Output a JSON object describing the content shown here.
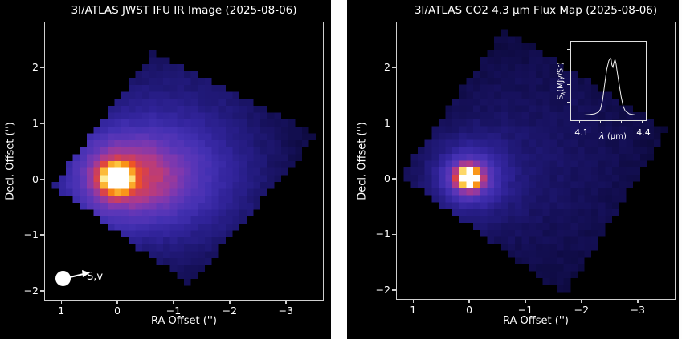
{
  "figure": {
    "background": "#000000",
    "text_color": "#ffffff",
    "spine_color": "#cfcfcf",
    "divider_color": "#fdfdfd",
    "colormap_stops": [
      [
        0.0,
        "#000000"
      ],
      [
        0.08,
        "#08062e"
      ],
      [
        0.16,
        "#140f55"
      ],
      [
        0.24,
        "#221a7c"
      ],
      [
        0.32,
        "#32249c"
      ],
      [
        0.4,
        "#4330b2"
      ],
      [
        0.48,
        "#5c36b8"
      ],
      [
        0.55,
        "#8138ae"
      ],
      [
        0.62,
        "#b13a88"
      ],
      [
        0.68,
        "#d6404e"
      ],
      [
        0.74,
        "#ee5226"
      ],
      [
        0.82,
        "#f98c12"
      ],
      [
        0.89,
        "#fdc843"
      ],
      [
        0.95,
        "#feef9e"
      ],
      [
        1.0,
        "#ffffff"
      ]
    ]
  },
  "chart_data": [
    {
      "type": "heatmap",
      "title": "3I/ATLAS JWST IFU IR Image (2025-08-06)",
      "xlabel": "RA Offset ('')",
      "ylabel": "Decl. Offset ('')",
      "xticks": [
        1,
        0,
        -1,
        -2,
        -3
      ],
      "xtick_labels": [
        "1",
        "0",
        "−1",
        "−2",
        "−3"
      ],
      "yticks": [
        2,
        1,
        0,
        -1,
        -2
      ],
      "ytick_labels": [
        "2",
        "1",
        "0",
        "−1",
        "−2"
      ],
      "xlim": [
        1.29,
        -3.69
      ],
      "ylim": [
        2.81,
        -2.19
      ],
      "annotation": "S,v",
      "peak_position_arcsec": {
        "ra": 0,
        "dec": 0
      },
      "footprint_corners_arcsec": [
        [
          -0.64,
          2.29
        ],
        [
          -3.61,
          0.79
        ],
        [
          -1.31,
          -1.93
        ],
        [
          1.16,
          -0.13
        ]
      ],
      "description": "Diffuse cometary coma: white/yellow core at origin, red-orange inner coma elongated toward negative RA, violet-indigo outer coma filling a rotated-square IFU footprint on black sky"
    },
    {
      "type": "heatmap",
      "title": "3I/ATLAS CO2 4.3 μm Flux Map (2025-08-06)",
      "xlabel": "RA Offset ('')",
      "ylabel": "Decl. Offset ('')",
      "xticks": [
        1,
        0,
        -1,
        -2,
        -3
      ],
      "xtick_labels": [
        "1",
        "0",
        "−1",
        "−2",
        "−3"
      ],
      "yticks": [
        2,
        1,
        0,
        -1,
        -2
      ],
      "ytick_labels": [
        "2",
        "1",
        "0",
        "−1",
        "−2"
      ],
      "xlim": [
        1.29,
        -3.69
      ],
      "ylim": [
        2.81,
        -2.19
      ],
      "peak_position_arcsec": {
        "ra": 0,
        "dec": 0
      },
      "footprint_corners_arcsec": [
        [
          -0.63,
          2.69
        ],
        [
          -3.57,
          0.86
        ],
        [
          -1.71,
          -2.14
        ],
        [
          1.21,
          0.04
        ]
      ],
      "description": "Compact CO2 emission core at origin over faint dark-indigo coma in same rotated IFU footprint",
      "inset": {
        "type": "line",
        "ylabel": "Sλ(MJy/Sr)",
        "ylabel_pre": "S",
        "ylabel_sub": "λ",
        "ylabel_unit": "(MJy/Sr)",
        "xlabel": "λ (μm)",
        "xlabel_lambda": "λ",
        "xlabel_unit": "(μm)",
        "xtick_labels": [
          "4.1",
          "4.4"
        ],
        "xticks_minor": [
          4.1,
          4.2,
          4.3,
          4.4
        ],
        "xlim": [
          4.057,
          4.42
        ],
        "x": [
          4.057,
          4.09,
          4.12,
          4.15,
          4.17,
          4.19,
          4.2,
          4.21,
          4.22,
          4.23,
          4.24,
          4.25,
          4.255,
          4.26,
          4.265,
          4.27,
          4.275,
          4.28,
          4.29,
          4.3,
          4.31,
          4.32,
          4.34,
          4.37,
          4.4,
          4.42
        ],
        "y": [
          0.02,
          0.02,
          0.02,
          0.03,
          0.04,
          0.07,
          0.12,
          0.28,
          0.55,
          0.8,
          0.95,
          1.0,
          0.88,
          0.84,
          0.92,
          0.97,
          0.9,
          0.78,
          0.55,
          0.33,
          0.17,
          0.09,
          0.04,
          0.02,
          0.02,
          0.02
        ],
        "description": "CO2 4.3 micron emission band, double-peaked profile"
      }
    }
  ]
}
